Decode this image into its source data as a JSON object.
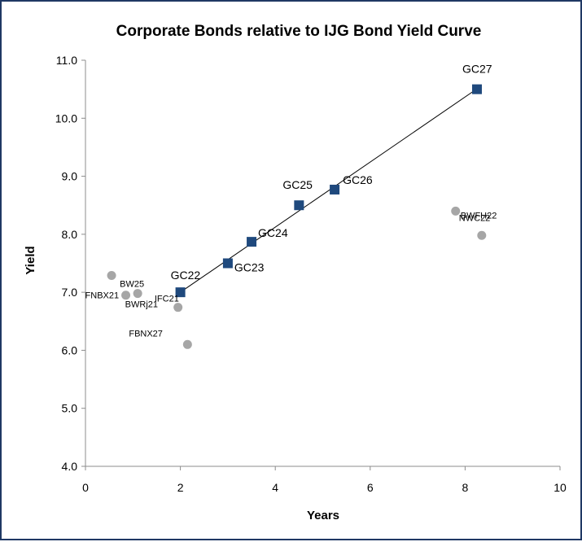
{
  "chart_data": {
    "type": "scatter",
    "title": "Corporate Bonds relative to IJG Bond Yield Curve",
    "xlabel": "Years",
    "ylabel": "Yield",
    "xlim": [
      0,
      10
    ],
    "ylim": [
      4.0,
      11.0
    ],
    "x_ticks": [
      "0",
      "2",
      "4",
      "6",
      "8",
      "10"
    ],
    "y_ticks": [
      "4.0",
      "5.0",
      "6.0",
      "7.0",
      "8.0",
      "9.0",
      "10.0",
      "11.0"
    ],
    "grid": false,
    "series": [
      {
        "marker": "square",
        "color": "#1f497d",
        "trendline": true,
        "points": [
          {
            "label": "GC22",
            "x": 2.0,
            "y": 7.0
          },
          {
            "label": "GC23",
            "x": 3.0,
            "y": 7.5
          },
          {
            "label": "GC24",
            "x": 3.5,
            "y": 7.87
          },
          {
            "label": "GC25",
            "x": 4.5,
            "y": 8.5
          },
          {
            "label": "GC26",
            "x": 5.25,
            "y": 8.77
          },
          {
            "label": "GC27",
            "x": 8.25,
            "y": 10.5
          }
        ]
      },
      {
        "marker": "circle",
        "color": "#a6a6a6",
        "points": [
          {
            "label": "FNBX21",
            "x": 0.85,
            "y": 6.95
          },
          {
            "label": "BW25",
            "x": 1.1,
            "y": 6.98
          },
          {
            "label": "IFC21",
            "x": 0.55,
            "y": 7.29
          },
          {
            "label": "BWRj21",
            "x": 1.95,
            "y": 6.74
          },
          {
            "label": "FBNX27",
            "x": 2.15,
            "y": 6.1
          },
          {
            "label": "BWFH22",
            "x": 7.8,
            "y": 8.4
          },
          {
            "label": "NWC22",
            "x": 8.35,
            "y": 7.98
          }
        ]
      }
    ]
  }
}
